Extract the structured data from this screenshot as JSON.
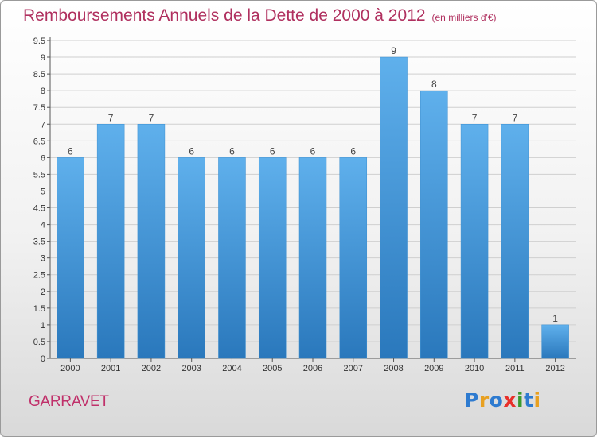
{
  "header": {
    "title": "Remboursements Annuels de la Dette de 2000 à 2012",
    "unit": "(en milliers d'€)"
  },
  "footer": {
    "municipality": "GARRAVET",
    "logo_text": "Proxiti",
    "logo_colors": [
      "#2e7bd0",
      "#e8a020",
      "#2e7bd0",
      "#e8302a",
      "#3a9a2e",
      "#2e7bd0",
      "#e8a020"
    ]
  },
  "colors": {
    "bar_top": "#5fb0ec",
    "bar_bottom": "#2a78bc",
    "title": "#b0305f",
    "grid": "#cfcfcf"
  },
  "chart_data": {
    "type": "bar",
    "title": "Remboursements Annuels de la Dette de 2000 à 2012",
    "subtitle": "(en milliers d'€)",
    "categories": [
      "2000",
      "2001",
      "2002",
      "2003",
      "2004",
      "2005",
      "2006",
      "2007",
      "2008",
      "2009",
      "2010",
      "2011",
      "2012"
    ],
    "values": [
      6,
      7,
      7,
      6,
      6,
      6,
      6,
      6,
      9,
      8,
      7,
      7,
      1
    ],
    "data_labels": [
      "6",
      "7",
      "7",
      "6",
      "6",
      "6",
      "6",
      "6",
      "9",
      "8",
      "7",
      "7",
      "1"
    ],
    "y_ticks": [
      "0",
      "0.5",
      "1",
      "1.5",
      "2",
      "2.5",
      "3",
      "3.5",
      "4",
      "4.5",
      "5",
      "5.5",
      "6",
      "6.5",
      "7",
      "7.5",
      "8",
      "8.5",
      "9",
      "9.5"
    ],
    "ylim": [
      0,
      9.5
    ],
    "grid": true
  }
}
